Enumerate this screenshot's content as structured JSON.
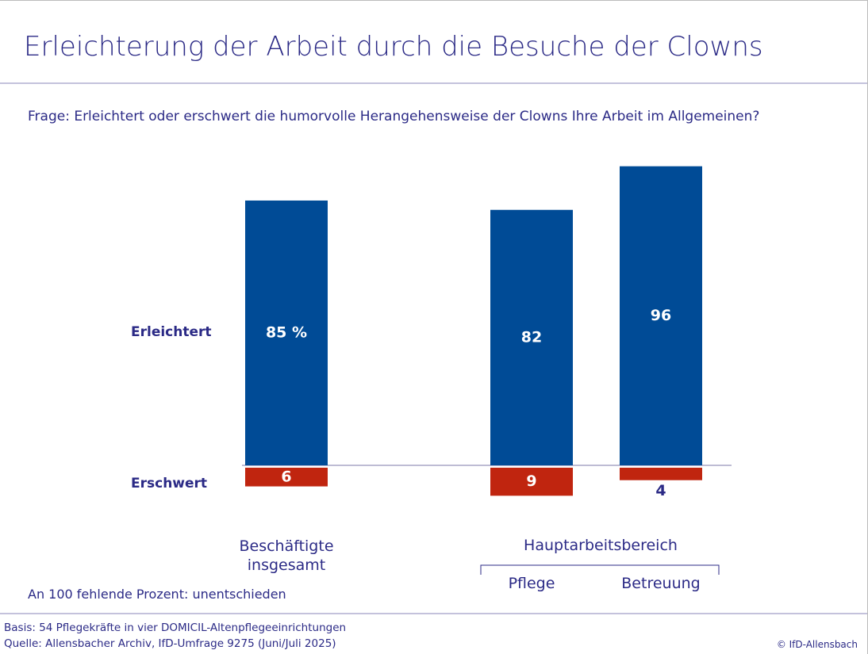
{
  "chart_data": {
    "type": "diverging_bar",
    "title": "Erleichterung der Arbeit durch die Besuche der Clowns",
    "subtitle": "Frage: Erleichtert oder erschwert die humorvolle Herangehensweise der Clowns Ihre Arbeit im Allgemeinen?",
    "categories": [
      "Beschäftigte insgesamt",
      "Pflege",
      "Betreuung"
    ],
    "group_label": "Hauptarbeitsbereich",
    "series": [
      {
        "name": "Erleichtert",
        "color": "#004b96",
        "values": [
          85,
          82,
          96
        ],
        "value_labels": [
          "85 %",
          "82",
          "96"
        ]
      },
      {
        "name": "Erschwert",
        "color": "#c0250f",
        "values": [
          6,
          9,
          4
        ],
        "value_labels": [
          "6",
          "9",
          "4"
        ]
      }
    ],
    "note": "An 100 fehlende Prozent: unentschieden",
    "footer": [
      "Basis: 54 Pflegekräfte in vier DOMICIL-Altenpflegeeinrichtungen",
      "Quelle: Allensbacher Archiv, IfD-Umfrage 9275 (Juni/Juli 2025)"
    ],
    "copyright": "© IfD-Allensbach"
  }
}
